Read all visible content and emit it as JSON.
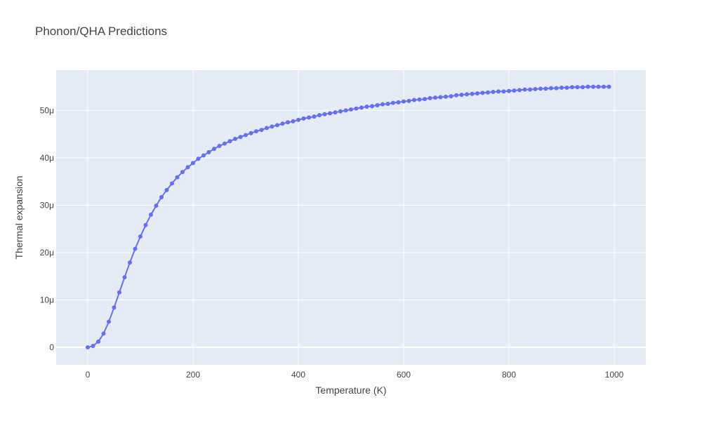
{
  "chart_data": {
    "type": "line",
    "title": "Phonon/QHA Predictions",
    "xlabel": "Temperature (K)",
    "ylabel": "Thermal expansion",
    "xlim": [
      -60,
      1060
    ],
    "ylim": [
      -3.7e-06,
      5.85e-05
    ],
    "x_ticks": [
      0,
      200,
      400,
      600,
      800,
      1000
    ],
    "x_tick_labels": [
      "0",
      "200",
      "400",
      "600",
      "800",
      "1000"
    ],
    "y_ticks": [
      0,
      1e-05,
      2e-05,
      3e-05,
      4e-05,
      5e-05
    ],
    "y_tick_labels": [
      "0",
      "10μ",
      "20μ",
      "30μ",
      "40μ",
      "50μ"
    ],
    "grid": true,
    "colors": {
      "plot_bg": "#E5ECF6",
      "grid": "#ffffff",
      "series": "#636EFA",
      "text": "#444444"
    },
    "series": [
      {
        "x": [
          0,
          10,
          20,
          30,
          40,
          50,
          60,
          70,
          80,
          90,
          100,
          110,
          120,
          130,
          140,
          150,
          160,
          170,
          180,
          190,
          200,
          210,
          220,
          230,
          240,
          250,
          260,
          270,
          280,
          290,
          300,
          310,
          320,
          330,
          340,
          350,
          360,
          370,
          380,
          390,
          400,
          410,
          420,
          430,
          440,
          450,
          460,
          470,
          480,
          490,
          500,
          510,
          520,
          530,
          540,
          550,
          560,
          570,
          580,
          590,
          600,
          610,
          620,
          630,
          640,
          650,
          660,
          670,
          680,
          690,
          700,
          710,
          720,
          730,
          740,
          750,
          760,
          770,
          780,
          790,
          800,
          810,
          820,
          830,
          840,
          850,
          860,
          870,
          880,
          890,
          900,
          910,
          920,
          930,
          940,
          950,
          960,
          970,
          980,
          990
        ],
        "y": [
          0,
          3e-07,
          1.2e-06,
          2.9e-06,
          5.4e-06,
          8.4e-06,
          1.16e-05,
          1.48e-05,
          1.79e-05,
          2.08e-05,
          2.34e-05,
          2.58e-05,
          2.8e-05,
          2.99e-05,
          3.17e-05,
          3.32e-05,
          3.46e-05,
          3.59e-05,
          3.7e-05,
          3.8e-05,
          3.89e-05,
          3.98e-05,
          4.05e-05,
          4.12e-05,
          4.19e-05,
          4.25e-05,
          4.3e-05,
          4.35e-05,
          4.4e-05,
          4.44e-05,
          4.48e-05,
          4.52e-05,
          4.56e-05,
          4.59e-05,
          4.63e-05,
          4.66e-05,
          4.69e-05,
          4.72e-05,
          4.75e-05,
          4.77e-05,
          4.8e-05,
          4.83e-05,
          4.85e-05,
          4.87e-05,
          4.9e-05,
          4.92e-05,
          4.94e-05,
          4.96e-05,
          4.98e-05,
          5e-05,
          5.02e-05,
          5.04e-05,
          5.06e-05,
          5.08e-05,
          5.09e-05,
          5.11e-05,
          5.13e-05,
          5.14e-05,
          5.16e-05,
          5.17e-05,
          5.19e-05,
          5.2e-05,
          5.22e-05,
          5.23e-05,
          5.24e-05,
          5.26e-05,
          5.27e-05,
          5.28e-05,
          5.29e-05,
          5.3e-05,
          5.32e-05,
          5.33e-05,
          5.34e-05,
          5.35e-05,
          5.36e-05,
          5.37e-05,
          5.38e-05,
          5.39e-05,
          5.4e-05,
          5.4e-05,
          5.41e-05,
          5.42e-05,
          5.43e-05,
          5.44e-05,
          5.44e-05,
          5.45e-05,
          5.46e-05,
          5.46e-05,
          5.47e-05,
          5.47e-05,
          5.48e-05,
          5.48e-05,
          5.49e-05,
          5.49e-05,
          5.49e-05,
          5.5e-05,
          5.5e-05,
          5.5e-05,
          5.5e-05,
          5.5e-05
        ]
      }
    ]
  }
}
